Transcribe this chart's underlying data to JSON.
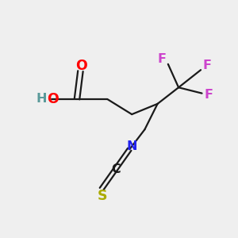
{
  "background_color": "#efefef",
  "bond_color": "#1a1a1a",
  "atoms": {
    "H": {
      "color": "#5a9a9a"
    },
    "O": {
      "color": "#ff0000"
    },
    "F": {
      "color": "#cc44cc"
    },
    "N": {
      "color": "#2222ee"
    },
    "S": {
      "color": "#aaaa00"
    }
  },
  "font_size": 11.5,
  "figsize": [
    3.0,
    3.0
  ],
  "dpi": 100,
  "xlim": [
    0,
    10
  ],
  "ylim": [
    0,
    10
  ]
}
